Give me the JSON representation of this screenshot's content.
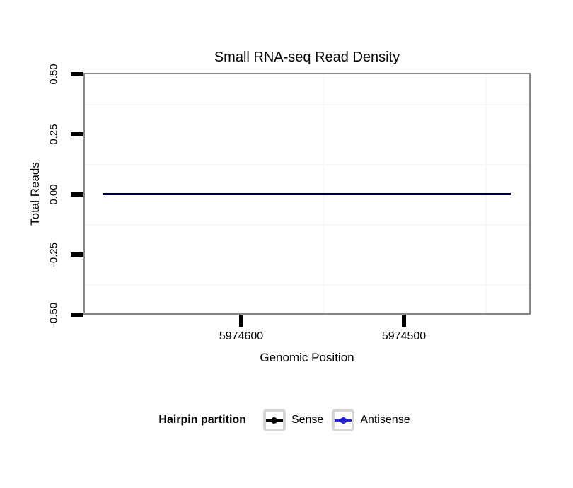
{
  "title": "Small RNA-seq Read Density",
  "axes": {
    "y": {
      "label": "Total Reads",
      "ticks": [
        {
          "label": "0.50"
        },
        {
          "label": "0.25"
        },
        {
          "label": "0.00"
        },
        {
          "label": "-0.25"
        },
        {
          "label": "-0.50"
        }
      ]
    },
    "x": {
      "label": "Genomic Position",
      "direction": "reversed",
      "ticks": [
        {
          "label": "5974600"
        },
        {
          "label": "5974500"
        }
      ]
    }
  },
  "legend": {
    "title": "Hairpin partition",
    "items": [
      {
        "label": "Sense",
        "color": "#000000"
      },
      {
        "label": "Antisense",
        "color": "#2222dd"
      }
    ]
  },
  "colors": {
    "panel_border": "#888888",
    "minor_grid": "#f7f7f7",
    "axis_tick": "#000000",
    "background": "#ffffff",
    "legend_key_border": "#d5d5d5"
  },
  "chart_data": {
    "type": "line",
    "title": "Small RNA-seq Read Density",
    "xlabel": "Genomic Position",
    "ylabel": "Total Reads",
    "x_ticks": [
      5974600,
      5974500
    ],
    "x_axis_reversed": true,
    "x_range_shown": [
      5974685,
      5974435
    ],
    "ylim": [
      -0.5,
      0.5
    ],
    "y_ticks": [
      0.5,
      0.25,
      0.0,
      -0.25,
      -0.5
    ],
    "grid": "minor gridlines only: y at ±0.125 and ±0.375, x at 5974550 and 5974450",
    "legend_position": "bottom",
    "legend_title": "Hairpin partition",
    "series": [
      {
        "name": "Sense",
        "color": "#000000",
        "x": [
          5974685,
          5974435
        ],
        "y": [
          0,
          0
        ]
      },
      {
        "name": "Antisense",
        "color": "#2222dd",
        "x": [
          5974685,
          5974435
        ],
        "y": [
          0,
          0
        ]
      }
    ]
  }
}
